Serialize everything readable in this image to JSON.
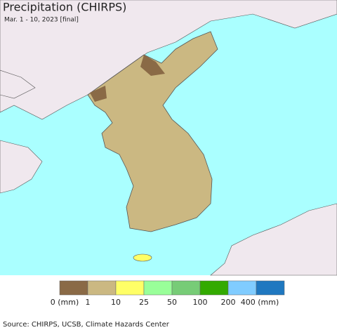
{
  "header": {
    "title": "Precipitation (CHIRPS)",
    "subtitle": "Mar. 1 - 10, 2023 [final]"
  },
  "legend": {
    "items": [
      {
        "label": "0 (mm)",
        "color": "#8a6a46"
      },
      {
        "label": "1",
        "color": "#cbb882"
      },
      {
        "label": "10",
        "color": "#ffff66"
      },
      {
        "label": "25",
        "color": "#99ff99"
      },
      {
        "label": "50",
        "color": "#77cc77"
      },
      {
        "label": "100",
        "color": "#33aa00"
      },
      {
        "label": "200",
        "color": "#80ccff"
      },
      {
        "label": "400 (mm)",
        "color": "#1f78c0"
      }
    ]
  },
  "source": "Source: CHIRPS, UCSB, Climate Hazards Center"
}
